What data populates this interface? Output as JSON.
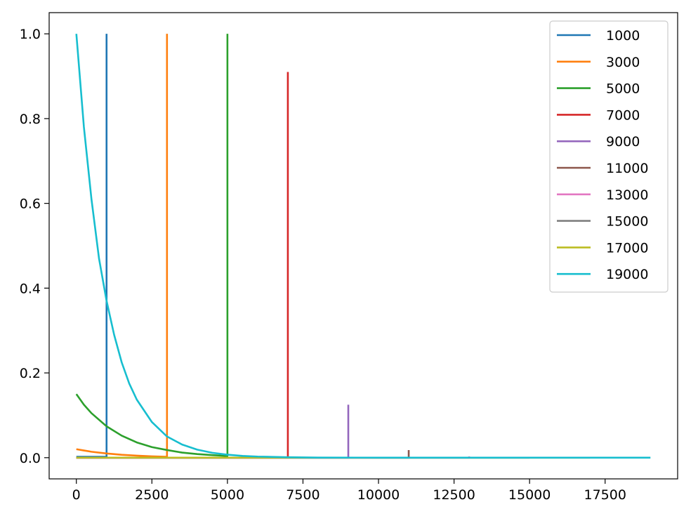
{
  "chart_data": {
    "type": "line",
    "title": "",
    "xlabel": "",
    "ylabel": "",
    "xlim": [
      -900,
      19900
    ],
    "ylim": [
      -0.05,
      1.05
    ],
    "grid": false,
    "legend_position": "top-right",
    "x_ticks": [
      0,
      2500,
      5000,
      7500,
      10000,
      12500,
      15000,
      17500
    ],
    "x_tick_labels": [
      "0",
      "2500",
      "5000",
      "7500",
      "10000",
      "12500",
      "15000",
      "17500"
    ],
    "y_ticks": [
      0.0,
      0.2,
      0.4,
      0.6,
      0.8,
      1.0
    ],
    "y_tick_labels": [
      "0.0",
      "0.2",
      "0.4",
      "0.6",
      "0.8",
      "1.0"
    ],
    "series": [
      {
        "name": "1000",
        "color": "#1f77b4",
        "x": [
          0,
          1000,
          1000,
          1000
        ],
        "y": [
          0.002,
          0.002,
          0.002,
          1.0
        ]
      },
      {
        "name": "3000",
        "color": "#ff7f0e",
        "x": [
          0,
          250,
          500,
          1000,
          1500,
          2000,
          2500,
          3000,
          3000
        ],
        "y": [
          0.02,
          0.017,
          0.014,
          0.01,
          0.0068,
          0.0047,
          0.0032,
          0.0022,
          1.0
        ]
      },
      {
        "name": "5000",
        "color": "#2ca02c",
        "x": [
          0,
          250,
          500,
          1000,
          1500,
          2000,
          2500,
          3000,
          3500,
          4000,
          4500,
          5000,
          5000
        ],
        "y": [
          0.15,
          0.125,
          0.105,
          0.074,
          0.052,
          0.036,
          0.025,
          0.018,
          0.012,
          0.0085,
          0.006,
          0.004,
          1.0
        ]
      },
      {
        "name": "7000",
        "color": "#d62728",
        "x": [
          0,
          7000,
          7000
        ],
        "y": [
          0.0,
          0.0,
          0.91
        ]
      },
      {
        "name": "9000",
        "color": "#9467bd",
        "x": [
          0,
          9000,
          9000
        ],
        "y": [
          0.0,
          0.0,
          0.125
        ]
      },
      {
        "name": "11000",
        "color": "#8c564b",
        "x": [
          0,
          11000,
          11000
        ],
        "y": [
          0.0,
          0.0,
          0.018
        ]
      },
      {
        "name": "13000",
        "color": "#e377c2",
        "x": [
          0,
          13000,
          13000
        ],
        "y": [
          0.0,
          0.0,
          0.003
        ]
      },
      {
        "name": "15000",
        "color": "#7f7f7f",
        "x": [
          0,
          15000
        ],
        "y": [
          0.0,
          0.0
        ]
      },
      {
        "name": "17000",
        "color": "#bcbd22",
        "x": [
          0,
          17000
        ],
        "y": [
          0.0,
          0.0
        ]
      },
      {
        "name": "19000",
        "color": "#17becf",
        "x": [
          0,
          250,
          500,
          750,
          1000,
          1250,
          1500,
          1750,
          2000,
          2500,
          3000,
          3500,
          4000,
          4500,
          5000,
          5500,
          6000,
          7000,
          8000,
          10000,
          19000
        ],
        "y": [
          1.0,
          0.78,
          0.61,
          0.47,
          0.37,
          0.29,
          0.225,
          0.175,
          0.137,
          0.084,
          0.05,
          0.031,
          0.019,
          0.0115,
          0.007,
          0.0042,
          0.0026,
          0.001,
          0.0003,
          0.0,
          0.0
        ]
      }
    ]
  }
}
